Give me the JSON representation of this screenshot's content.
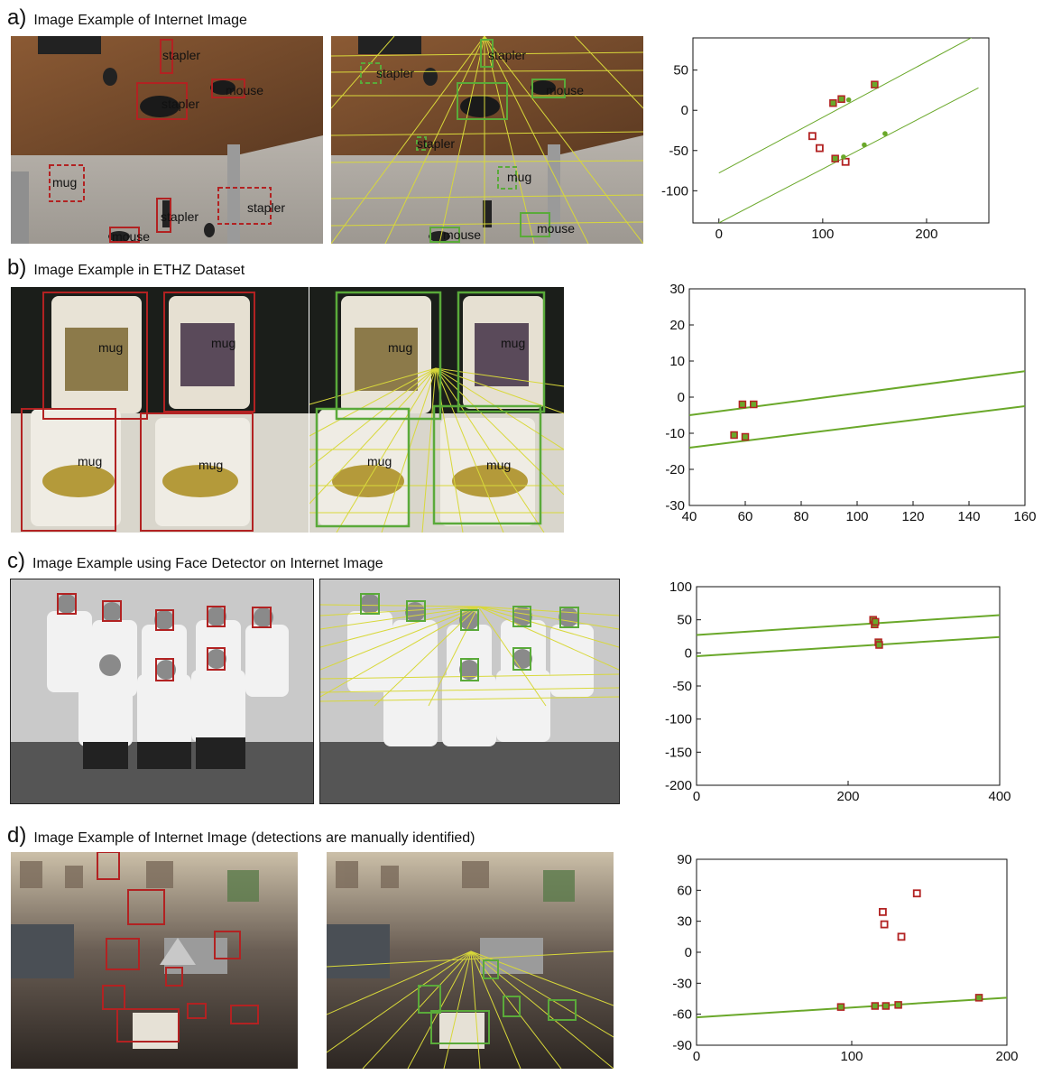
{
  "panels": [
    {
      "letter": "a)",
      "title": "Image Example of Internet Image",
      "labels": {
        "stapler": "stapler",
        "mouse": "mouse",
        "mug": "mug"
      }
    },
    {
      "letter": "b)",
      "title": "Image Example in ETHZ Dataset",
      "labels": {
        "mug": "mug"
      }
    },
    {
      "letter": "c)",
      "title": "Image Example using Face Detector on Internet Image"
    },
    {
      "letter": "d)",
      "title": "Image Example of Internet Image (detections are manually identified)"
    }
  ],
  "colors": {
    "detection_box": "#b22222",
    "inlier_box": "#5aaa3a",
    "horizon_lines": "#d8d83a",
    "fit_line": "#6aa82a",
    "outlier_marker": "#b22222",
    "inlier_marker": "#6aa82a"
  },
  "chart_data": [
    {
      "type": "scatter",
      "xlim": [
        -25,
        260
      ],
      "ylim": [
        -140,
        90
      ],
      "xticks": [
        0,
        100,
        200
      ],
      "yticks": [
        50,
        0,
        -50,
        -100
      ],
      "lines": [
        {
          "x": [
            0,
            250
          ],
          "y": [
            -78,
            95
          ]
        },
        {
          "x": [
            0,
            250
          ],
          "y": [
            -140,
            28
          ]
        }
      ],
      "inliers_boxed": [
        {
          "x": 110,
          "y": 9
        },
        {
          "x": 118,
          "y": 14
        },
        {
          "x": 150,
          "y": 32
        },
        {
          "x": 112,
          "y": -60
        }
      ],
      "inliers_dots": [
        {
          "x": 125,
          "y": 13
        },
        {
          "x": 120,
          "y": -58
        },
        {
          "x": 140,
          "y": -43
        },
        {
          "x": 160,
          "y": -29
        }
      ],
      "outliers": [
        {
          "x": 90,
          "y": -32
        },
        {
          "x": 97,
          "y": -47
        },
        {
          "x": 122,
          "y": -64
        }
      ]
    },
    {
      "type": "scatter",
      "xlim": [
        40,
        160
      ],
      "ylim": [
        -30,
        30
      ],
      "xticks": [
        40,
        60,
        80,
        100,
        120,
        140,
        160
      ],
      "yticks": [
        30,
        20,
        10,
        0,
        -10,
        -20,
        -30
      ],
      "lines": [
        {
          "x": [
            40,
            160
          ],
          "y": [
            -5,
            7.2
          ]
        },
        {
          "x": [
            40,
            160
          ],
          "y": [
            -14,
            -2.5
          ]
        }
      ],
      "inliers_boxed": [
        {
          "x": 59,
          "y": -2
        },
        {
          "x": 63,
          "y": -2
        },
        {
          "x": 56,
          "y": -10.5
        },
        {
          "x": 60,
          "y": -11
        }
      ],
      "inliers_dots": [],
      "outliers": []
    },
    {
      "type": "scatter",
      "xlim": [
        0,
        400
      ],
      "ylim": [
        -200,
        100
      ],
      "xticks": [
        0,
        200,
        400
      ],
      "yticks": [
        100,
        50,
        0,
        -50,
        -100,
        -150,
        -200
      ],
      "lines": [
        {
          "x": [
            0,
            400
          ],
          "y": [
            27,
            57
          ]
        },
        {
          "x": [
            0,
            400
          ],
          "y": [
            -5,
            24
          ]
        }
      ],
      "inliers_boxed": [
        {
          "x": 233,
          "y": 50
        },
        {
          "x": 235,
          "y": 43
        },
        {
          "x": 236,
          "y": 47
        },
        {
          "x": 240,
          "y": 16
        },
        {
          "x": 241,
          "y": 12
        }
      ],
      "inliers_dots": [],
      "outliers": []
    },
    {
      "type": "scatter",
      "xlim": [
        0,
        200
      ],
      "ylim": [
        -90,
        90
      ],
      "xticks": [
        0,
        100,
        200
      ],
      "yticks": [
        90,
        60,
        30,
        0,
        -30,
        -60,
        -90
      ],
      "lines": [
        {
          "x": [
            0,
            200
          ],
          "y": [
            -63,
            -44
          ]
        }
      ],
      "inliers_boxed": [
        {
          "x": 93,
          "y": -53
        },
        {
          "x": 115,
          "y": -52
        },
        {
          "x": 122,
          "y": -52
        },
        {
          "x": 130,
          "y": -51
        },
        {
          "x": 182,
          "y": -44
        }
      ],
      "inliers_dots": [],
      "outliers": [
        {
          "x": 120,
          "y": 39
        },
        {
          "x": 121,
          "y": 27
        },
        {
          "x": 142,
          "y": 57
        },
        {
          "x": 132,
          "y": 15
        }
      ]
    }
  ]
}
